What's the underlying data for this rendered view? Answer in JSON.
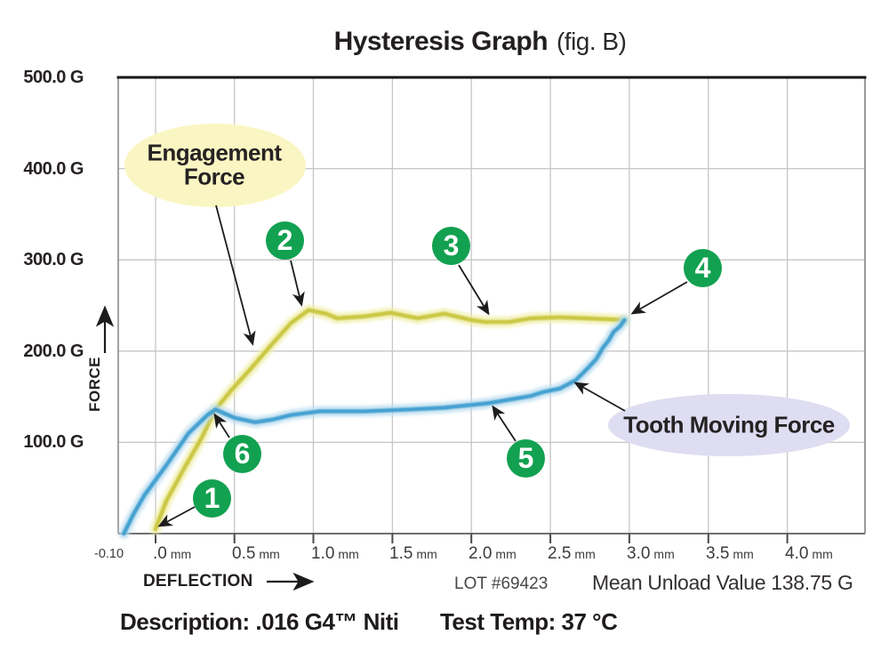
{
  "title": {
    "main": "Hysteresis Graph",
    "suffix": "(fig. B)"
  },
  "axes": {
    "y_label": "FORCE",
    "x_label": "DEFLECTION",
    "y_ticks": [
      "500.0 G",
      "400.0 G",
      "300.0 G",
      "200.0 G",
      "100.0 G"
    ],
    "x_start_label": "-0.10",
    "x_ticks": [
      {
        "num": ".0",
        "unit": "mm"
      },
      {
        "num": "0.5",
        "unit": "mm"
      },
      {
        "num": "1.0",
        "unit": "mm"
      },
      {
        "num": "1.5",
        "unit": "mm"
      },
      {
        "num": "2.0",
        "unit": "mm"
      },
      {
        "num": "2.5",
        "unit": "mm"
      },
      {
        "num": "3.0",
        "unit": "mm"
      },
      {
        "num": "3.5",
        "unit": "mm"
      },
      {
        "num": "4.0",
        "unit": "mm"
      }
    ]
  },
  "annotations": {
    "engagement": {
      "line1": "Engagement",
      "line2": "Force"
    },
    "tooth": {
      "label": "Tooth Moving Force"
    },
    "markers": [
      {
        "label": "1",
        "x_mm": 0.0,
        "force_g": 5
      },
      {
        "label": "2",
        "x_mm": 0.93,
        "force_g": 245
      },
      {
        "label": "3",
        "x_mm": 2.1,
        "force_g": 233
      },
      {
        "label": "4",
        "x_mm": 2.97,
        "force_g": 234
      },
      {
        "label": "5",
        "x_mm": 2.13,
        "force_g": 140
      },
      {
        "label": "6",
        "x_mm": 0.38,
        "force_g": 136
      }
    ]
  },
  "footer": {
    "lot": "LOT #69423",
    "mean_unload": "Mean Unload Value 138.75 G",
    "description": "Description: .016 G4™ Niti",
    "test_temp": "Test Temp: 37 °C"
  },
  "colors": {
    "marker_green": "#12a150",
    "engagement_ellipse": "#faf6c3",
    "tooth_ellipse": "#dfddf1",
    "grid": "#c6c6c6",
    "loading_curve": "#c9c53e",
    "unloading_curve": "#3d9dcf"
  },
  "chart_data": {
    "type": "line",
    "title": "Hysteresis Graph (fig. B)",
    "xlabel": "DEFLECTION (mm)",
    "ylabel": "FORCE (G)",
    "xlim": [
      -0.1,
      4.5
    ],
    "ylim": [
      0,
      500
    ],
    "grid": true,
    "x_tick_values_mm": [
      0,
      0.5,
      1.0,
      1.5,
      2.0,
      2.5,
      3.0,
      3.5,
      4.0
    ],
    "y_tick_values_g": [
      100,
      200,
      300,
      400,
      500
    ],
    "mean_unload_value_g": 138.75,
    "series": [
      {
        "name": "Loading (Engagement Force)",
        "color": "#c9c53e",
        "halo": "#efeea6",
        "points": [
          [
            0.0,
            5
          ],
          [
            0.07,
            36
          ],
          [
            0.18,
            71
          ],
          [
            0.29,
            104
          ],
          [
            0.38,
            136
          ],
          [
            0.48,
            157
          ],
          [
            0.61,
            182
          ],
          [
            0.74,
            208
          ],
          [
            0.86,
            231
          ],
          [
            0.97,
            245
          ],
          [
            1.08,
            241
          ],
          [
            1.15,
            236
          ],
          [
            1.32,
            238
          ],
          [
            1.49,
            242
          ],
          [
            1.66,
            236
          ],
          [
            1.83,
            241
          ],
          [
            2.0,
            234
          ],
          [
            2.09,
            232
          ],
          [
            2.24,
            232
          ],
          [
            2.38,
            236
          ],
          [
            2.56,
            237
          ],
          [
            2.73,
            236
          ],
          [
            2.87,
            235
          ],
          [
            2.97,
            234
          ]
        ]
      },
      {
        "name": "Unloading (Tooth Moving Force)",
        "color": "#3d9dcf",
        "halo": "#b9dcef",
        "points": [
          [
            2.97,
            234
          ],
          [
            2.94,
            227
          ],
          [
            2.9,
            221
          ],
          [
            2.87,
            212
          ],
          [
            2.83,
            203
          ],
          [
            2.79,
            191
          ],
          [
            2.73,
            180
          ],
          [
            2.66,
            168
          ],
          [
            2.56,
            159
          ],
          [
            2.45,
            155
          ],
          [
            2.38,
            151
          ],
          [
            2.28,
            148
          ],
          [
            2.11,
            143
          ],
          [
            2.0,
            141
          ],
          [
            1.83,
            138
          ],
          [
            1.6,
            136
          ],
          [
            1.32,
            134
          ],
          [
            1.04,
            134
          ],
          [
            0.86,
            130
          ],
          [
            0.74,
            125
          ],
          [
            0.63,
            122
          ],
          [
            0.5,
            127
          ],
          [
            0.38,
            136
          ],
          [
            0.33,
            130
          ],
          [
            0.21,
            110
          ],
          [
            0.07,
            75
          ],
          [
            -0.07,
            42
          ],
          [
            -0.14,
            21
          ],
          [
            -0.2,
            0
          ]
        ]
      }
    ]
  }
}
